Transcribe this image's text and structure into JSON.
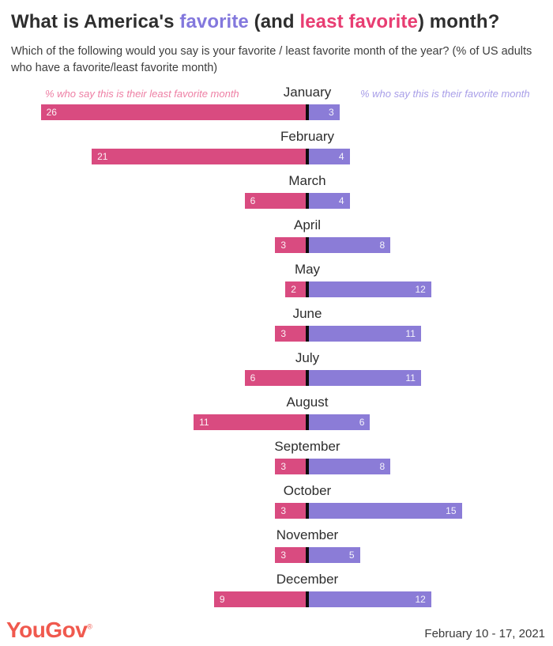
{
  "header": {
    "title_parts": {
      "prefix": "What is America's ",
      "favorite_word": "favorite",
      "mid": " (and ",
      "least_word": "least favorite",
      "suffix": ") month?"
    },
    "subtitle": "Which of the following would you say is your favorite / least favorite month of the year? (% of US adults who have a favorite/least favorite month)"
  },
  "legend": {
    "least_label": "% who say this is their least favorite month",
    "favorite_label": "% who say this is their favorite month"
  },
  "chart_data": {
    "type": "bar",
    "orientation": "diverging-horizontal",
    "title": "What is America's favorite (and least favorite) month?",
    "unit": "% of US adults",
    "categories": [
      "January",
      "February",
      "March",
      "April",
      "May",
      "June",
      "July",
      "August",
      "September",
      "October",
      "November",
      "December"
    ],
    "series": [
      {
        "name": "least favorite month",
        "color": "#d94b80",
        "direction": "left",
        "values": [
          26,
          21,
          6,
          3,
          2,
          3,
          6,
          11,
          3,
          3,
          3,
          9
        ]
      },
      {
        "name": "favorite month",
        "color": "#8b7cd7",
        "direction": "right",
        "values": [
          3,
          4,
          4,
          8,
          12,
          11,
          11,
          6,
          8,
          15,
          5,
          12
        ]
      }
    ],
    "axis": {
      "center_value": 0,
      "divider_color": "#0d0d0d"
    },
    "legend_position": "top-flanking",
    "grid": false
  },
  "colors": {
    "accent_favorite": "#8378dd",
    "accent_least": "#e83d72",
    "bar_least": "#d94b80",
    "bar_favorite": "#8b7cd7",
    "logo_red": "#f0594e",
    "text_dark": "#2e2e2e"
  },
  "footer": {
    "logo": "YouGov",
    "registered": "®",
    "date_range": "February 10 - 17, 2021"
  }
}
